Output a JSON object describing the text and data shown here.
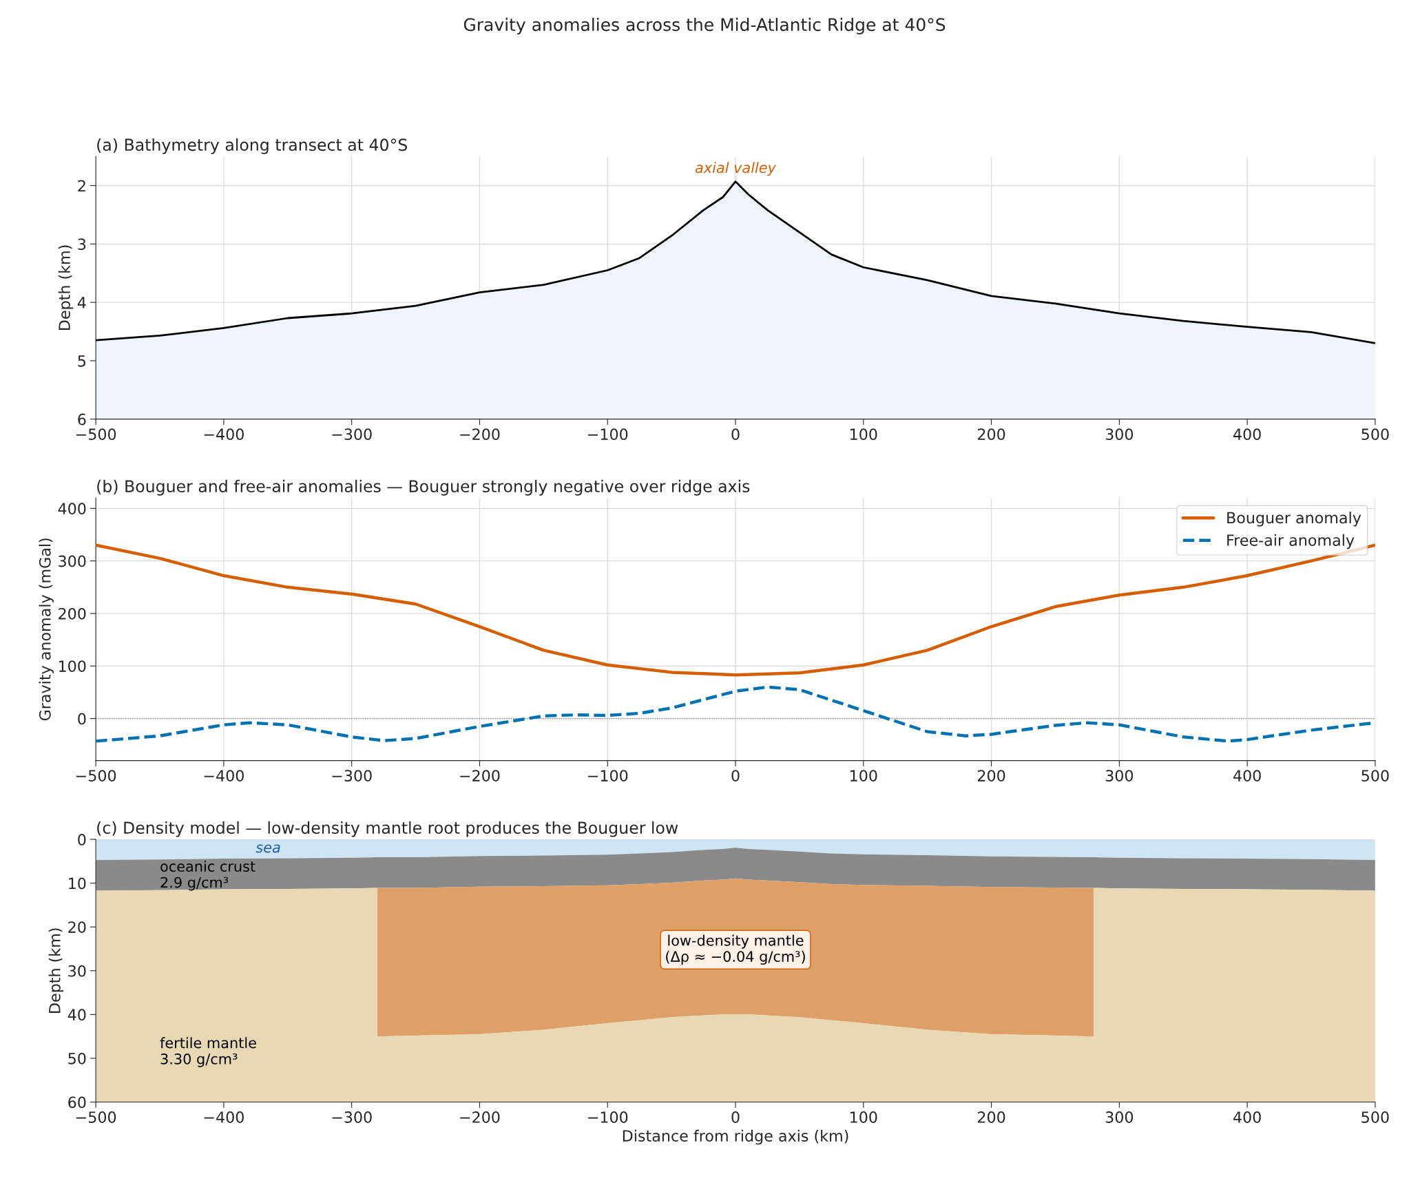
{
  "chart_data": [
    {
      "type": "line",
      "title": "Gravity anomalies across the Mid-Atlantic Ridge at 40°S",
      "subtitle": "(a) Bathymetry along transect at 40°S",
      "ylabel": "Depth (km)",
      "xlim": [
        -500,
        500
      ],
      "xticks": [
        {
          "value": -500,
          "label": "−500"
        },
        {
          "value": -400,
          "label": "−400"
        },
        {
          "value": -300,
          "label": "−300"
        },
        {
          "value": -200,
          "label": "−200"
        },
        {
          "value": -100,
          "label": "−100"
        },
        0,
        100,
        200,
        300,
        400,
        500
      ],
      "ylim": [
        6,
        1.5
      ],
      "yticks": [
        2,
        3,
        4,
        5,
        6
      ],
      "grid": true,
      "legend": false,
      "x": [
        -500,
        -450,
        -400,
        -350,
        -300,
        -250,
        -200,
        -150,
        -100,
        -75,
        -50,
        -25,
        -10,
        0,
        10,
        25,
        50,
        75,
        100,
        150,
        200,
        250,
        300,
        350,
        400,
        450,
        500
      ],
      "series": [
        {
          "color": "#000000",
          "values": [
            4.65,
            4.57,
            4.44,
            4.27,
            4.19,
            4.06,
            3.83,
            3.7,
            3.45,
            3.24,
            2.86,
            2.42,
            2.2,
            1.93,
            2.15,
            2.42,
            2.8,
            3.18,
            3.4,
            3.62,
            3.89,
            4.02,
            4.19,
            4.32,
            4.42,
            4.51,
            4.7
          ],
          "lower": [
            4.65,
            4.57,
            4.44,
            4.27,
            4.19,
            4.06,
            3.83,
            3.7,
            3.45,
            3.24,
            2.86,
            2.42,
            2.2,
            1.93,
            2.15,
            2.42,
            2.8,
            3.18,
            3.4,
            3.62,
            3.89,
            4.02,
            4.19,
            4.32,
            4.42,
            4.51,
            4.7
          ],
          "upper": [
            6,
            6,
            6,
            6,
            6,
            6,
            6,
            6,
            6,
            6,
            6,
            6,
            6,
            6,
            6,
            6,
            6,
            6,
            6,
            6,
            6,
            6,
            6,
            6,
            6,
            6,
            6
          ]
        }
      ],
      "annotations": [
        {
          "text": "axial valley",
          "x": 0,
          "y": 1.93
        }
      ]
    },
    {
      "type": "line",
      "title": "(b) Bouguer and free-air anomalies — Bouguer strongly negative over ridge axis",
      "ylabel": "Gravity anomaly (mGal)",
      "xlim": [
        -500,
        500
      ],
      "xticks": [
        {
          "value": -500,
          "label": "−500"
        },
        {
          "value": -400,
          "label": "−400"
        },
        {
          "value": -300,
          "label": "−300"
        },
        {
          "value": -200,
          "label": "−200"
        },
        {
          "value": -100,
          "label": "−100"
        },
        0,
        100,
        200,
        300,
        400,
        500
      ],
      "ylim": [
        -80,
        420
      ],
      "yticks": [
        0,
        100,
        200,
        300,
        400
      ],
      "grid": true,
      "legend": "top right",
      "series": [
        {
          "name": "Bouguer anomaly",
          "color": "#d55e00",
          "line_style": "solid",
          "x": [
            -500,
            -450,
            -400,
            -350,
            -300,
            -250,
            -200,
            -150,
            -100,
            -50,
            0,
            50,
            100,
            150,
            200,
            250,
            300,
            350,
            400,
            450,
            500
          ],
          "values": [
            330,
            305,
            272,
            250,
            237,
            218,
            175,
            130,
            102,
            88,
            83,
            87,
            102,
            130,
            175,
            213,
            235,
            250,
            272,
            300,
            330
          ]
        },
        {
          "name": "Free-air anomaly",
          "color": "#0072b2",
          "line_style": "dashed",
          "x": [
            -500,
            -450,
            -400,
            -380,
            -350,
            -300,
            -275,
            -250,
            -200,
            -150,
            -125,
            -100,
            -75,
            -50,
            0,
            25,
            50,
            100,
            150,
            180,
            200,
            250,
            275,
            300,
            350,
            385,
            400,
            450,
            500
          ],
          "values": [
            -43,
            -33,
            -12,
            -8,
            -12,
            -35,
            -42,
            -38,
            -15,
            5,
            7,
            6,
            10,
            20,
            52,
            60,
            55,
            15,
            -25,
            -33,
            -30,
            -13,
            -8,
            -12,
            -35,
            -43,
            -40,
            -22,
            -8
          ]
        }
      ],
      "ref_lines": [
        {
          "axis": "y",
          "value": 0,
          "color": "#808080",
          "line_style": "dotted"
        }
      ]
    },
    {
      "type": "area",
      "stacked": true,
      "title": "(c) Density model — low-density mantle root produces the Bouguer low",
      "xlabel": "Distance from ridge axis (km)",
      "ylabel": "Depth (km)",
      "xlim": [
        -500,
        500
      ],
      "xticks": [
        {
          "value": -500,
          "label": "−500"
        },
        {
          "value": -400,
          "label": "−400"
        },
        {
          "value": -300,
          "label": "−300"
        },
        {
          "value": -200,
          "label": "−200"
        },
        {
          "value": -100,
          "label": "−100"
        },
        0,
        100,
        200,
        300,
        400,
        500
      ],
      "ylim": [
        60,
        0
      ],
      "yticks": [
        0,
        10,
        20,
        30,
        40,
        50,
        60
      ],
      "grid": false,
      "legend": false,
      "x": [
        -500,
        -450,
        -400,
        -350,
        -300,
        -280,
        -280,
        -250,
        -200,
        -150,
        -100,
        -75,
        -50,
        -25,
        -10,
        0,
        10,
        25,
        50,
        75,
        100,
        150,
        200,
        250,
        280,
        280,
        300,
        350,
        400,
        450,
        500
      ],
      "series": [
        {
          "color": "#d0e5f3",
          "values": [
            4.7,
            4.6,
            4.4,
            4.3,
            4.2,
            4.1,
            4.1,
            4.1,
            3.8,
            3.7,
            3.5,
            3.2,
            2.9,
            2.4,
            2.2,
            1.9,
            2.2,
            2.4,
            2.8,
            3.2,
            3.4,
            3.6,
            3.9,
            4.0,
            4.1,
            4.1,
            4.2,
            4.3,
            4.4,
            4.5,
            4.7
          ]
        },
        {
          "color": "#8a8a8a",
          "values": [
            7,
            7,
            7,
            7,
            7,
            7,
            7,
            7,
            7,
            7,
            7,
            7,
            7,
            7,
            7,
            7,
            7,
            7,
            7,
            7,
            7,
            7,
            7,
            7,
            7,
            7,
            7,
            7,
            7,
            7,
            7
          ]
        },
        {
          "color": "#dea066",
          "values": [
            0,
            0,
            0,
            0,
            0,
            0,
            33.9,
            33.7,
            33.7,
            32.8,
            31.5,
            31.1,
            30.7,
            30.8,
            30.8,
            31.1,
            30.8,
            30.8,
            30.8,
            31.1,
            31.6,
            32.9,
            33.6,
            33.8,
            33.9,
            0,
            0,
            0,
            0,
            0,
            0
          ]
        },
        {
          "color": "#e8d8b4",
          "values": [
            48.3,
            48.4,
            48.6,
            48.7,
            48.8,
            48.9,
            15.0,
            15.2,
            15.5,
            16.5,
            18.0,
            18.7,
            19.4,
            19.8,
            20.0,
            20.0,
            20.0,
            19.8,
            19.4,
            18.7,
            18.0,
            16.5,
            15.5,
            15.2,
            15.0,
            48.9,
            48.8,
            48.7,
            48.6,
            48.5,
            48.3
          ]
        }
      ],
      "annotations": [
        "sea",
        "oceanic crust\n2.9 g/cm³",
        "fertile mantle\n3.30 g/cm³",
        "low-density mantle\n(Δρ ≈ −0.04 g/cm³)"
      ]
    }
  ]
}
